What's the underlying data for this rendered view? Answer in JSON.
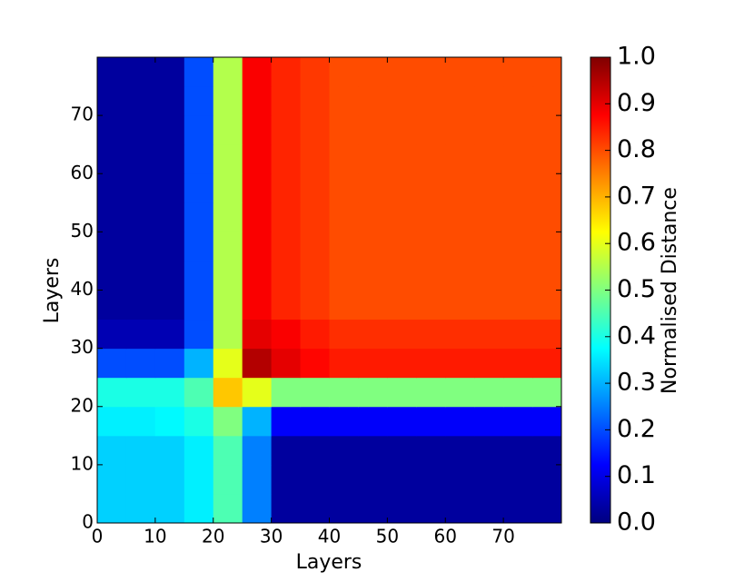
{
  "chart_data": {
    "type": "heatmap",
    "xlabel": "Layers",
    "ylabel": "Layers",
    "x": [
      0,
      5,
      10,
      15,
      20,
      25,
      30,
      35,
      40,
      45,
      50,
      55,
      60,
      65,
      70,
      75
    ],
    "y": [
      0,
      5,
      10,
      15,
      20,
      25,
      30,
      35,
      40,
      45,
      50,
      55,
      60,
      65,
      70,
      75
    ],
    "values": [
      [
        0.33,
        0.33,
        0.33,
        0.36,
        0.45,
        0.25,
        0.03,
        0.03,
        0.03,
        0.03,
        0.03,
        0.03,
        0.03,
        0.03,
        0.03,
        0.03
      ],
      [
        0.33,
        0.33,
        0.33,
        0.36,
        0.45,
        0.25,
        0.03,
        0.03,
        0.03,
        0.03,
        0.03,
        0.03,
        0.03,
        0.03,
        0.03,
        0.03
      ],
      [
        0.33,
        0.33,
        0.33,
        0.36,
        0.45,
        0.25,
        0.03,
        0.03,
        0.03,
        0.03,
        0.03,
        0.03,
        0.03,
        0.03,
        0.03,
        0.03
      ],
      [
        0.36,
        0.36,
        0.37,
        0.4,
        0.5,
        0.3,
        0.12,
        0.12,
        0.12,
        0.12,
        0.12,
        0.12,
        0.12,
        0.12,
        0.12,
        0.12
      ],
      [
        0.4,
        0.4,
        0.4,
        0.45,
        0.68,
        0.6,
        0.5,
        0.5,
        0.5,
        0.5,
        0.5,
        0.5,
        0.5,
        0.5,
        0.5,
        0.5
      ],
      [
        0.2,
        0.2,
        0.2,
        0.3,
        0.6,
        0.95,
        0.9,
        0.87,
        0.85,
        0.85,
        0.85,
        0.85,
        0.85,
        0.85,
        0.85,
        0.85
      ],
      [
        0.05,
        0.05,
        0.05,
        0.2,
        0.55,
        0.9,
        0.88,
        0.85,
        0.83,
        0.83,
        0.83,
        0.83,
        0.83,
        0.83,
        0.83,
        0.83
      ],
      [
        0.03,
        0.03,
        0.03,
        0.2,
        0.55,
        0.88,
        0.84,
        0.82,
        0.8,
        0.8,
        0.8,
        0.8,
        0.8,
        0.8,
        0.8,
        0.8
      ],
      [
        0.03,
        0.03,
        0.03,
        0.2,
        0.55,
        0.88,
        0.84,
        0.82,
        0.8,
        0.8,
        0.8,
        0.8,
        0.8,
        0.8,
        0.8,
        0.8
      ],
      [
        0.03,
        0.03,
        0.03,
        0.2,
        0.55,
        0.88,
        0.84,
        0.82,
        0.8,
        0.8,
        0.8,
        0.8,
        0.8,
        0.8,
        0.8,
        0.8
      ],
      [
        0.03,
        0.03,
        0.03,
        0.2,
        0.55,
        0.88,
        0.84,
        0.82,
        0.8,
        0.8,
        0.8,
        0.8,
        0.8,
        0.8,
        0.8,
        0.8
      ],
      [
        0.03,
        0.03,
        0.03,
        0.2,
        0.55,
        0.88,
        0.84,
        0.82,
        0.8,
        0.8,
        0.8,
        0.8,
        0.8,
        0.8,
        0.8,
        0.8
      ],
      [
        0.03,
        0.03,
        0.03,
        0.2,
        0.55,
        0.88,
        0.84,
        0.82,
        0.8,
        0.8,
        0.8,
        0.8,
        0.8,
        0.8,
        0.8,
        0.8
      ],
      [
        0.03,
        0.03,
        0.03,
        0.2,
        0.55,
        0.88,
        0.84,
        0.82,
        0.8,
        0.8,
        0.8,
        0.8,
        0.8,
        0.8,
        0.8,
        0.8
      ],
      [
        0.03,
        0.03,
        0.03,
        0.2,
        0.55,
        0.88,
        0.84,
        0.82,
        0.8,
        0.8,
        0.8,
        0.8,
        0.8,
        0.8,
        0.8,
        0.8
      ],
      [
        0.03,
        0.03,
        0.03,
        0.2,
        0.55,
        0.88,
        0.84,
        0.82,
        0.8,
        0.8,
        0.8,
        0.8,
        0.8,
        0.8,
        0.8,
        0.8
      ]
    ],
    "cell": 5,
    "xlim": [
      0,
      80
    ],
    "ylim": [
      0,
      80
    ],
    "xticks": [
      0,
      10,
      20,
      30,
      40,
      50,
      60,
      70
    ],
    "yticks": [
      0,
      10,
      20,
      30,
      40,
      50,
      60,
      70
    ],
    "colormap": "jet",
    "colorbar": {
      "label": "Normalised Distance",
      "lim": [
        0,
        1
      ],
      "ticks": [
        {
          "value": 0,
          "label": "0.0"
        },
        0.1,
        0.2,
        0.3,
        0.4,
        0.5,
        0.6,
        0.7,
        0.8,
        0.9,
        {
          "value": 1,
          "label": "1.0"
        }
      ]
    }
  }
}
